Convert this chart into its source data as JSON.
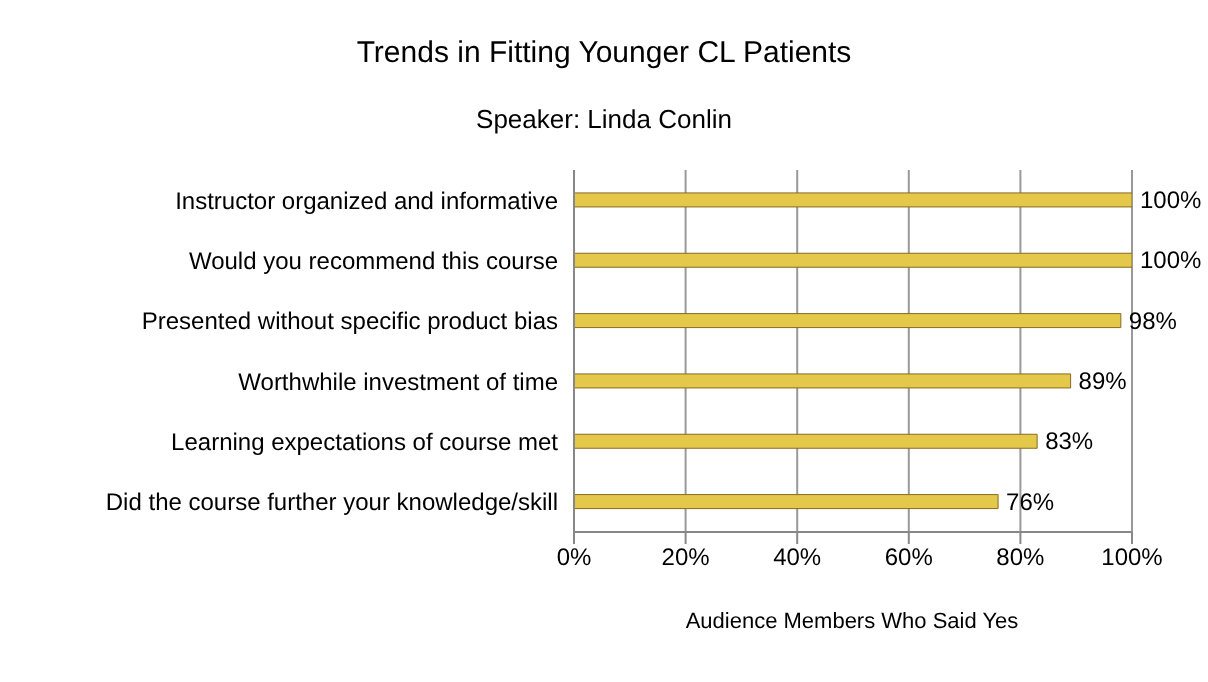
{
  "chart_data": {
    "type": "bar",
    "orientation": "horizontal",
    "title": "Trends in Fitting Younger CL Patients",
    "subtitle": "Speaker: Linda Conlin",
    "xlabel": "Audience Members Who Said Yes",
    "categories": [
      "Instructor organized and informative",
      "Would you recommend this course",
      "Presented without specific product bias",
      "Worthwhile investment of time",
      "Learning expectations of course met",
      "Did the course further your knowledge/skill"
    ],
    "values": [
      100,
      100,
      98,
      89,
      83,
      76
    ],
    "value_labels": [
      "100%",
      "100%",
      "98%",
      "89%",
      "83%",
      "76%"
    ],
    "color": "#e3c84a",
    "xlim": [
      0,
      100
    ],
    "xticks": [
      {
        "value": 0,
        "label": "0%"
      },
      {
        "value": 20,
        "label": "20%"
      },
      {
        "value": 40,
        "label": "40%"
      },
      {
        "value": 60,
        "label": "60%"
      },
      {
        "value": 80,
        "label": "80%"
      },
      {
        "value": 100,
        "label": "100%"
      }
    ],
    "grid": "x"
  }
}
